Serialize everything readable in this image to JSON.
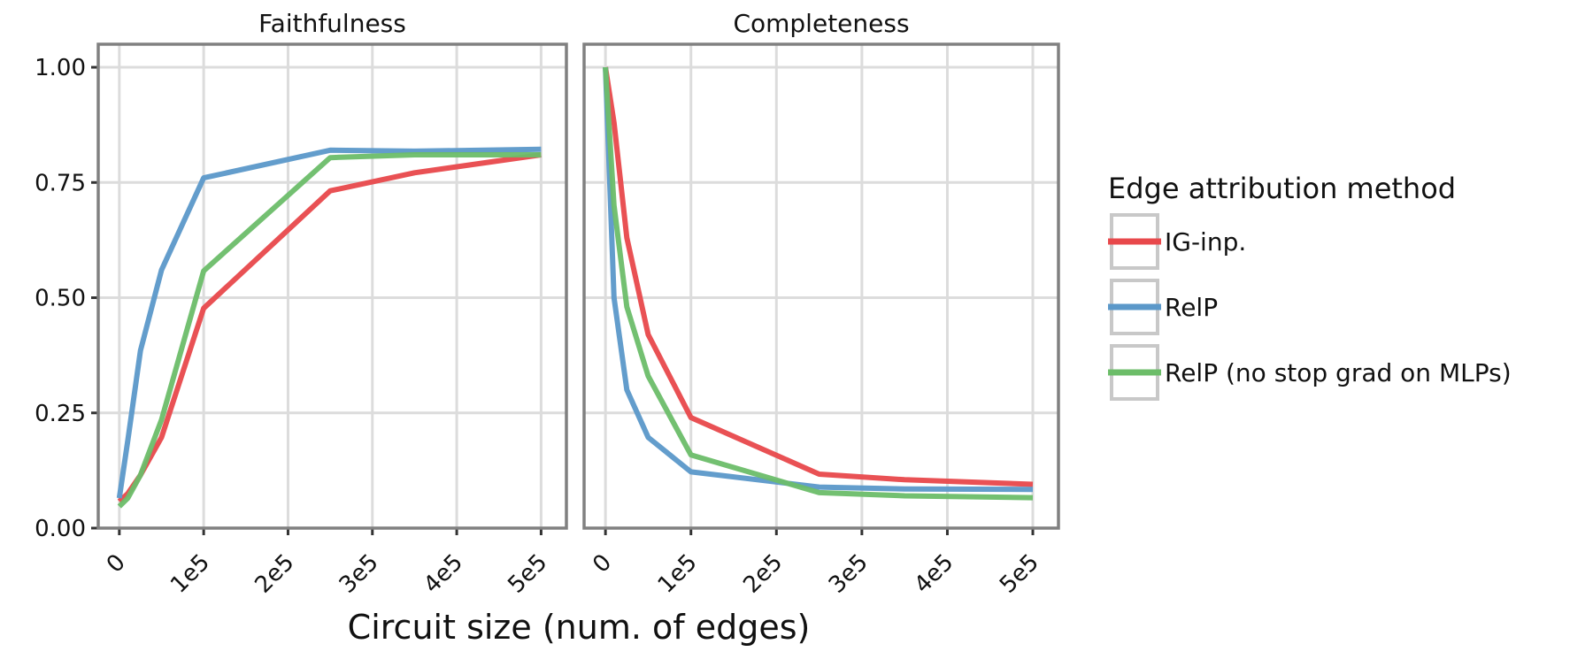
{
  "chart_data": [
    {
      "type": "line",
      "title": "Faithfulness",
      "xlim": [
        -25000,
        530000
      ],
      "ylim": [
        0,
        1.05
      ],
      "grid": true,
      "x_ticks": [
        0,
        100000,
        200000,
        300000,
        400000,
        500000
      ],
      "x_tick_labels": [
        "0",
        "1e5",
        "2e5",
        "3e5",
        "4e5",
        "5e5"
      ],
      "y_ticks": [
        0,
        0.25,
        0.5,
        0.75,
        1.0
      ],
      "y_tick_labels": [
        "0.00",
        "0.25",
        "0.50",
        "0.75",
        "1.00"
      ],
      "x": [
        0,
        10000,
        25000,
        50000,
        100000,
        250000,
        350000,
        500000
      ],
      "series": [
        {
          "name": "IG-inp.",
          "values": [
            0.058,
            0.075,
            0.115,
            0.197,
            0.477,
            0.732,
            0.771,
            0.81
          ]
        },
        {
          "name": "RelP",
          "values": [
            0.065,
            0.19,
            0.385,
            0.56,
            0.76,
            0.82,
            0.818,
            0.822
          ]
        },
        {
          "name": "RelP (no stop grad on MLPs)",
          "values": [
            0.047,
            0.065,
            0.115,
            0.235,
            0.558,
            0.804,
            0.81,
            0.81
          ]
        }
      ]
    },
    {
      "type": "line",
      "title": "Completeness",
      "xlim": [
        -25000,
        530000
      ],
      "ylim": [
        0,
        1.05
      ],
      "grid": true,
      "x_ticks": [
        0,
        100000,
        200000,
        300000,
        400000,
        500000
      ],
      "x_tick_labels": [
        "0",
        "1e5",
        "2e5",
        "3e5",
        "4e5",
        "5e5"
      ],
      "x": [
        0,
        10000,
        25000,
        50000,
        100000,
        250000,
        350000,
        500000
      ],
      "series": [
        {
          "name": "IG-inp.",
          "values": [
            1.0,
            0.88,
            0.63,
            0.42,
            0.24,
            0.117,
            0.105,
            0.095
          ]
        },
        {
          "name": "RelP",
          "values": [
            1.0,
            0.5,
            0.3,
            0.197,
            0.122,
            0.089,
            0.085,
            0.084
          ]
        },
        {
          "name": "RelP (no stop grad on MLPs)",
          "values": [
            1.0,
            0.7,
            0.48,
            0.33,
            0.159,
            0.077,
            0.07,
            0.066
          ]
        }
      ]
    }
  ],
  "xlabel": "Circuit size (num. of edges)",
  "legend": {
    "title": "Edge attribution method",
    "placement": "right",
    "items": [
      {
        "label": "IG-inp.",
        "color": "#e8484b"
      },
      {
        "label": "RelP",
        "color": "#5b98c9"
      },
      {
        "label": "RelP (no stop grad on MLPs)",
        "color": "#6cbd69"
      }
    ]
  }
}
